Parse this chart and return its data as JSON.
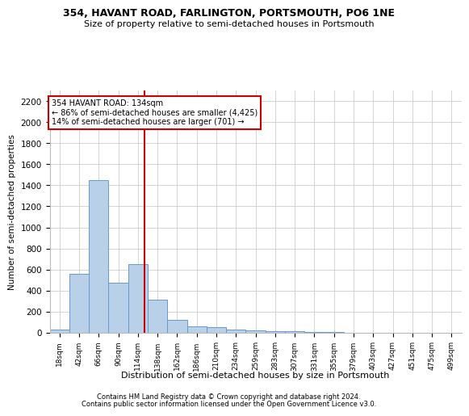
{
  "title": "354, HAVANT ROAD, FARLINGTON, PORTSMOUTH, PO6 1NE",
  "subtitle": "Size of property relative to semi-detached houses in Portsmouth",
  "xlabel": "Distribution of semi-detached houses by size in Portsmouth",
  "ylabel": "Number of semi-detached properties",
  "footnote1": "Contains HM Land Registry data © Crown copyright and database right 2024.",
  "footnote2": "Contains public sector information licensed under the Open Government Licence v3.0.",
  "annotation_line1": "354 HAVANT ROAD: 134sqm",
  "annotation_line2": "← 86% of semi-detached houses are smaller (4,425)",
  "annotation_line3": "14% of semi-detached houses are larger (701) →",
  "bar_color": "#b8d0e8",
  "bar_edge_color": "#6699cc",
  "vline_color": "#cc0000",
  "annotation_box_color": "#ffffff",
  "annotation_box_edge": "#cc0000",
  "categories": [
    "18sqm",
    "42sqm",
    "66sqm",
    "90sqm",
    "114sqm",
    "138sqm",
    "162sqm",
    "186sqm",
    "210sqm",
    "234sqm",
    "259sqm",
    "283sqm",
    "307sqm",
    "331sqm",
    "355sqm",
    "379sqm",
    "403sqm",
    "427sqm",
    "451sqm",
    "475sqm",
    "499sqm"
  ],
  "values": [
    30,
    560,
    1450,
    475,
    650,
    315,
    120,
    60,
    50,
    30,
    20,
    15,
    15,
    8,
    5,
    3,
    2,
    1,
    1,
    0,
    0
  ],
  "ylim": [
    0,
    2300
  ],
  "yticks": [
    0,
    200,
    400,
    600,
    800,
    1000,
    1200,
    1400,
    1600,
    1800,
    2000,
    2200
  ],
  "background_color": "#ffffff",
  "grid_color": "#cccccc",
  "vline_x_index": 4.833
}
